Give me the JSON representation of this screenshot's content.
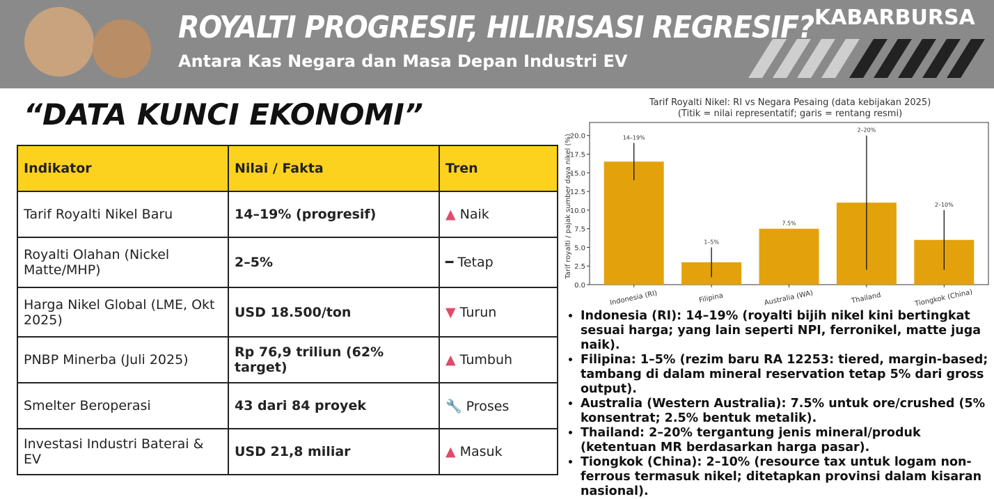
{
  "header": {
    "title": "ROYALTI PROGRESIF, HILIRISASI REGRESIF?",
    "subtitle": "Antara Kas Negara dan Masa Depan Industri EV",
    "brand": "KABARBURSA"
  },
  "section_title": "“DATA KUNCI EKONOMI”",
  "table": {
    "columns": [
      "Indikator",
      "Nilai / Fakta",
      "Tren"
    ],
    "rows": [
      [
        "Tarif Royalti Nikel Baru",
        "14–19% (progresif)",
        {
          "icon": "▲",
          "label": "Naik"
        }
      ],
      [
        "Royalti Olahan (Nickel Matte/MHP)",
        "2–5%",
        {
          "icon": "━",
          "label": "Tetap"
        }
      ],
      [
        "Harga Nikel Global (LME, Okt 2025)",
        "USD 18.500/ton",
        {
          "icon": "▼",
          "label": "Turun"
        }
      ],
      [
        "PNBP Minerba (Juli 2025)",
        "Rp 76,9 triliun (62% target)",
        {
          "icon": "▲",
          "label": "Tumbuh"
        }
      ],
      [
        "Smelter Beroperasi",
        "43 dari 84 proyek",
        {
          "icon": "🔧",
          "label": "Proses"
        }
      ],
      [
        "Investasi Industri Baterai & EV",
        "USD 21,8 miliar",
        {
          "icon": "▲",
          "label": "Masuk"
        }
      ]
    ]
  },
  "chart_data": {
    "type": "bar",
    "title": "Tarif Royalti Nikel: RI vs Negara Pesaing (data kebijakan 2025)",
    "subtitle": "(Titik = nilai representatif; garis = rentang resmi)",
    "y_label": "Tarif royalti / pajak sumber daya nikel (%)",
    "categories": [
      "Indonesia (RI)",
      "Filipina",
      "Australia (WA)",
      "Thailand",
      "Tiongkok (China)"
    ],
    "values": [
      16.5,
      3,
      7.5,
      11,
      6
    ],
    "low": [
      14,
      1,
      7.5,
      2,
      2
    ],
    "high": [
      19,
      5,
      7.5,
      20,
      10
    ],
    "range_labels": [
      "14–19%",
      "1–5%",
      "7.5%",
      "2–20%",
      "2–10%"
    ],
    "color": "#e3a20b",
    "ylim": [
      0,
      21
    ],
    "yticks": [
      {
        "value": 0,
        "label": "0.0"
      },
      {
        "value": 2.5,
        "label": "2.5"
      },
      {
        "value": 5,
        "label": "5.0"
      },
      {
        "value": 7.5,
        "label": "7.5"
      },
      {
        "value": 10,
        "label": "10.0"
      },
      {
        "value": 12.5,
        "label": "12.5"
      },
      {
        "value": 15,
        "label": "15.0"
      },
      {
        "value": 17.5,
        "label": "17.5"
      },
      {
        "value": 20,
        "label": "20.0"
      }
    ]
  },
  "notes": [
    "Indonesia (RI): 14–19% (royalti bijih nikel kini bertingkat sesuai harga; yang lain seperti NPI, ferronikel, matte juga naik).",
    "Filipina: 1–5% (rezim baru RA 12253: tiered, margin-based; tambang di dalam mineral reservation tetap 5% dari gross output).",
    "Australia (Western Australia): 7.5% untuk ore/crushed (5% konsentrat; 2.5% bentuk metalik).",
    "Thailand: 2–20% tergantung jenis mineral/produk (ketentuan MR berdasarkan harga pasar).",
    "Tiongkok (China): 2–10% (resource tax untuk logam non-ferrous termasuk nikel; ditetapkan provinsi dalam kisaran nasional)."
  ]
}
